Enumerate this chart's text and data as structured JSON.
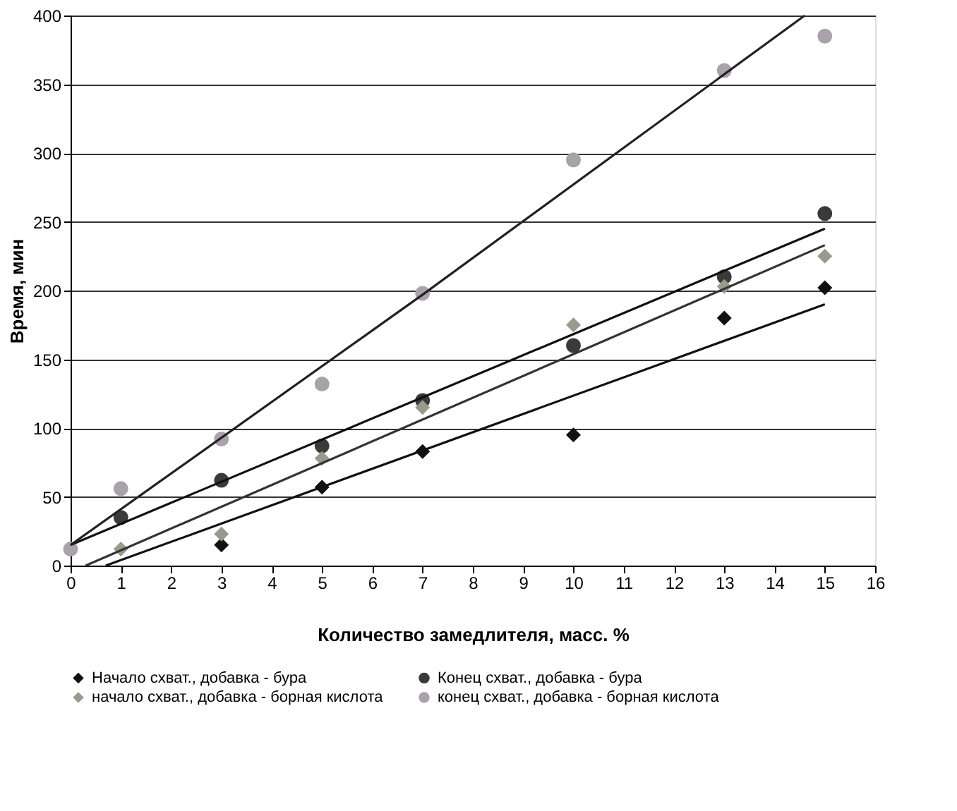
{
  "chart_data": {
    "type": "scatter",
    "xlabel": "Количество замедлителя, масс. %",
    "ylabel": "Время, мин",
    "xlim": [
      0,
      16
    ],
    "xticks": [
      0,
      1,
      2,
      3,
      4,
      5,
      6,
      7,
      8,
      9,
      10,
      11,
      12,
      13,
      14,
      15,
      16
    ],
    "ylim": [
      0,
      400
    ],
    "yticks": [
      0,
      50,
      100,
      150,
      200,
      250,
      300,
      350,
      400
    ],
    "grid": "y",
    "legend": "bottom",
    "series": [
      {
        "name": "Начало схват., добавка - бура",
        "color": "#111111",
        "marker": "diamond",
        "x": [
          3,
          5,
          7,
          10,
          13,
          15
        ],
        "values": [
          15,
          57,
          83,
          95,
          180,
          202
        ]
      },
      {
        "name": "Конец схват., добавка -  бура",
        "color": "#3a3a3a",
        "marker": "circle",
        "x": [
          1,
          3,
          5,
          7,
          10,
          13,
          15
        ],
        "values": [
          35,
          62,
          87,
          120,
          160,
          210,
          256
        ]
      },
      {
        "name": "начало схват.,  добавка - борная кислота",
        "color": "#9a9a8c",
        "marker": "diamond",
        "x": [
          1,
          3,
          5,
          7,
          10,
          13,
          15
        ],
        "values": [
          12,
          23,
          78,
          115,
          175,
          203,
          225
        ]
      },
      {
        "name": "конец схват., добавка - борная кислота",
        "color": "#aaa2aa",
        "marker": "circle",
        "x": [
          0,
          1,
          3,
          5,
          7,
          10,
          13,
          15
        ],
        "values": [
          12,
          56,
          92,
          132,
          198,
          295,
          360,
          385
        ]
      },
      {
        "type": "line",
        "color": "#111111",
        "x": [
          0.7,
          15
        ],
        "values": [
          0,
          190
        ]
      },
      {
        "type": "line",
        "color": "#111111",
        "x": [
          0,
          15
        ],
        "values": [
          15,
          245
        ]
      },
      {
        "type": "line",
        "color": "#333333",
        "x": [
          0.3,
          15
        ],
        "values": [
          0,
          233
        ]
      },
      {
        "type": "line",
        "color": "#222222",
        "x": [
          0,
          7,
          14.6
        ],
        "values": [
          15,
          197,
          400
        ]
      }
    ]
  }
}
